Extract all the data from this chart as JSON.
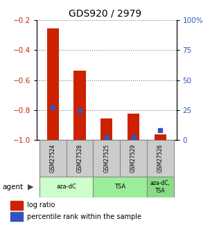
{
  "title": "GDS920 / 2979",
  "samples": [
    "GSM27524",
    "GSM27528",
    "GSM27525",
    "GSM27529",
    "GSM27526"
  ],
  "log_ratios": [
    -0.255,
    -0.535,
    -0.855,
    -0.825,
    -0.963
  ],
  "percentile_ranks": [
    27.0,
    24.5,
    2.0,
    2.5,
    8.0
  ],
  "ylim_left": [
    -1.0,
    -0.2
  ],
  "ylim_right": [
    0,
    100
  ],
  "yticks_left": [
    -1.0,
    -0.8,
    -0.6,
    -0.4,
    -0.2
  ],
  "yticks_right": [
    0,
    25,
    50,
    75,
    100
  ],
  "ytick_labels_right": [
    "0",
    "25",
    "50",
    "75",
    "100%"
  ],
  "bar_color": "#cc2200",
  "blue_color": "#3355bb",
  "agent_groups": [
    {
      "label": "aza-dC",
      "indices": [
        0,
        1
      ],
      "color": "#ccffcc"
    },
    {
      "label": "TSA",
      "indices": [
        2,
        3
      ],
      "color": "#99ee99"
    },
    {
      "label": "aza-dC,\nTSA",
      "indices": [
        4
      ],
      "color": "#88dd88"
    }
  ],
  "legend_red_label": "log ratio",
  "legend_blue_label": "percentile rank within the sample",
  "agent_label": "agent",
  "sample_bg_color": "#cccccc",
  "dotted_color": "#777777",
  "bar_width": 0.45
}
